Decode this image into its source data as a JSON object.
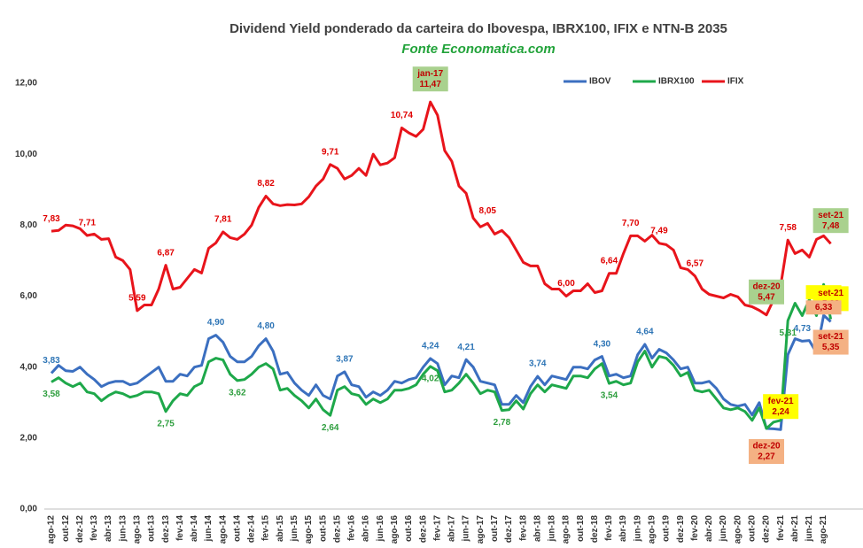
{
  "chart_data": {
    "type": "line",
    "title": "Dividend Yield ponderado da carteira do Ibovespa, IBRX100, IFIX e NTN-B 2035",
    "subtitle": "Fonte Economatica.com",
    "categories": [
      "ago-12",
      null,
      "out-12",
      null,
      "dez-12",
      null,
      "fev-13",
      null,
      "abr-13",
      null,
      "jun-13",
      null,
      "ago-13",
      null,
      "out-13",
      null,
      "dez-13",
      null,
      "fev-14",
      null,
      "abr-14",
      null,
      "jun-14",
      null,
      "ago-14",
      null,
      "out-14",
      null,
      "dez-14",
      null,
      "fev-15",
      null,
      "abr-15",
      null,
      "jun-15",
      null,
      "ago-15",
      null,
      "out-15",
      null,
      "dez-15",
      null,
      "fev-16",
      null,
      "abr-16",
      null,
      "jun-16",
      null,
      "ago-16",
      null,
      "out-16",
      null,
      "dez-16",
      null,
      "fev-17",
      null,
      "abr-17",
      null,
      "jun-17",
      null,
      "ago-17",
      null,
      "out-17",
      null,
      "dez-17",
      null,
      "fev-18",
      null,
      "abr-18",
      null,
      "jun-18",
      null,
      "ago-18",
      null,
      "out-18",
      null,
      "dez-18",
      null,
      "fev-19",
      null,
      "abr-19",
      null,
      "jun-19",
      null,
      "ago-19",
      null,
      "out-19",
      null,
      "dez-19",
      null,
      "fev-20",
      null,
      "abr-20",
      null,
      "jun-20",
      null,
      "ago-20",
      null,
      "out-20",
      null,
      "dez-20",
      null,
      "fev-21",
      null,
      "abr-21",
      null,
      "jun-21",
      null,
      "ago-21",
      null
    ],
    "ylim": [
      0,
      12
    ],
    "yticks": [
      {
        "value": 0,
        "label": "0,00"
      },
      {
        "value": 2,
        "label": "2,00"
      },
      {
        "value": 4,
        "label": "4,00"
      },
      {
        "value": 6,
        "label": "6,00"
      },
      {
        "value": 8,
        "label": "8,00"
      },
      {
        "value": 10,
        "label": "10,00"
      },
      {
        "value": 12,
        "label": "12,00"
      }
    ],
    "grid": false,
    "legend": "top-right",
    "series": [
      {
        "name": "IBOV",
        "color": "#3b6fc0",
        "label_color": "#2e75b6",
        "label_side": "above",
        "box_color": "#ffff00",
        "boxed": [
          102,
          108,
          109
        ],
        "values": [
          3.83,
          4.05,
          3.9,
          3.88,
          4.0,
          3.8,
          3.65,
          3.45,
          3.55,
          3.6,
          3.6,
          3.5,
          3.55,
          3.7,
          3.85,
          4.0,
          3.6,
          3.6,
          3.8,
          3.75,
          4.0,
          4.05,
          4.8,
          4.9,
          4.7,
          4.3,
          4.15,
          4.15,
          4.3,
          4.6,
          4.8,
          4.45,
          3.8,
          3.85,
          3.55,
          3.35,
          3.2,
          3.5,
          3.2,
          3.1,
          3.75,
          3.87,
          3.5,
          3.45,
          3.15,
          3.3,
          3.2,
          3.35,
          3.6,
          3.55,
          3.65,
          3.7,
          4.0,
          4.24,
          4.1,
          3.5,
          3.75,
          3.7,
          4.21,
          4.0,
          3.6,
          3.55,
          3.5,
          2.95,
          2.95,
          3.2,
          3.0,
          3.45,
          3.74,
          3.5,
          3.75,
          3.7,
          3.65,
          4.0,
          4.0,
          3.95,
          4.2,
          4.3,
          3.75,
          3.8,
          3.7,
          3.75,
          4.35,
          4.64,
          4.25,
          4.5,
          4.4,
          4.2,
          3.95,
          4.0,
          3.55,
          3.55,
          3.6,
          3.4,
          3.1,
          2.95,
          2.9,
          2.95,
          2.65,
          3.0,
          2.27,
          2.26,
          2.24,
          4.35,
          4.8,
          4.73,
          4.75,
          4.4,
          5.46,
          5.28
        ],
        "value_labels": [
          "3,83",
          null,
          null,
          null,
          null,
          null,
          null,
          null,
          null,
          null,
          null,
          null,
          null,
          null,
          null,
          null,
          null,
          null,
          null,
          null,
          null,
          null,
          null,
          "4,90",
          null,
          null,
          null,
          null,
          null,
          null,
          "4,80",
          null,
          null,
          null,
          null,
          null,
          null,
          null,
          null,
          null,
          null,
          "3,87",
          null,
          null,
          null,
          null,
          null,
          null,
          null,
          null,
          null,
          null,
          null,
          "4,24",
          null,
          null,
          null,
          null,
          "4,21",
          null,
          null,
          null,
          null,
          null,
          null,
          null,
          null,
          null,
          "3,74",
          null,
          null,
          null,
          null,
          null,
          null,
          null,
          null,
          "4,30",
          null,
          null,
          null,
          null,
          null,
          "4,64",
          null,
          null,
          null,
          null,
          null,
          null,
          null,
          null,
          null,
          null,
          null,
          null,
          null,
          null,
          null,
          null,
          null,
          null,
          "2,24",
          null,
          null,
          "4,73",
          null,
          null,
          "5,46",
          "5,28"
        ],
        "value_label_dates": [
          null,
          null,
          null,
          null,
          null,
          null,
          null,
          null,
          null,
          null,
          null,
          null,
          null,
          null,
          null,
          null,
          null,
          null,
          null,
          null,
          null,
          null,
          null,
          null,
          null,
          null,
          null,
          null,
          null,
          null,
          null,
          null,
          null,
          null,
          null,
          null,
          null,
          null,
          null,
          null,
          null,
          null,
          null,
          null,
          null,
          null,
          null,
          null,
          null,
          null,
          null,
          null,
          null,
          null,
          null,
          null,
          null,
          null,
          null,
          null,
          null,
          null,
          null,
          null,
          null,
          null,
          null,
          null,
          null,
          null,
          null,
          null,
          null,
          null,
          null,
          null,
          null,
          null,
          null,
          null,
          null,
          null,
          null,
          null,
          null,
          null,
          null,
          null,
          null,
          null,
          null,
          null,
          null,
          null,
          null,
          null,
          null,
          null,
          null,
          null,
          null,
          null,
          "fev-21",
          null,
          null,
          null,
          null,
          null,
          null,
          "set-21"
        ]
      },
      {
        "name": "IBRX100",
        "color": "#1ea84a",
        "label_color": "#2e9e3e",
        "label_side": "below",
        "box_color": "#f4b183",
        "boxed": [
          100,
          108,
          109
        ],
        "values": [
          3.58,
          3.7,
          3.55,
          3.45,
          3.55,
          3.3,
          3.25,
          3.05,
          3.2,
          3.3,
          3.25,
          3.15,
          3.2,
          3.3,
          3.3,
          3.25,
          2.75,
          3.05,
          3.25,
          3.2,
          3.45,
          3.55,
          4.15,
          4.25,
          4.2,
          3.8,
          3.62,
          3.65,
          3.8,
          4.0,
          4.1,
          3.95,
          3.35,
          3.4,
          3.2,
          3.05,
          2.85,
          3.1,
          2.8,
          2.64,
          3.35,
          3.45,
          3.25,
          3.2,
          2.95,
          3.1,
          3.0,
          3.1,
          3.35,
          3.35,
          3.4,
          3.5,
          3.8,
          4.02,
          3.9,
          3.3,
          3.35,
          3.55,
          3.8,
          3.55,
          3.25,
          3.35,
          3.3,
          2.78,
          2.8,
          3.05,
          2.82,
          3.25,
          3.5,
          3.3,
          3.5,
          3.45,
          3.4,
          3.75,
          3.75,
          3.7,
          3.95,
          4.1,
          3.54,
          3.6,
          3.5,
          3.55,
          4.15,
          4.45,
          4.0,
          4.3,
          4.25,
          4.05,
          3.75,
          3.85,
          3.35,
          3.3,
          3.35,
          3.1,
          2.85,
          2.8,
          2.85,
          2.75,
          2.5,
          2.85,
          2.27,
          2.45,
          2.5,
          5.31,
          5.8,
          5.45,
          5.9,
          5.45,
          6.33,
          5.35
        ],
        "value_labels": [
          "3,58",
          null,
          null,
          null,
          null,
          null,
          null,
          null,
          null,
          null,
          null,
          null,
          null,
          null,
          null,
          null,
          "2,75",
          null,
          null,
          null,
          null,
          null,
          null,
          null,
          null,
          null,
          "3,62",
          null,
          null,
          null,
          null,
          null,
          null,
          null,
          null,
          null,
          null,
          null,
          null,
          "2,64",
          null,
          null,
          null,
          null,
          null,
          null,
          null,
          null,
          null,
          null,
          null,
          null,
          null,
          "4,02",
          null,
          null,
          null,
          null,
          null,
          null,
          null,
          null,
          null,
          "2,78",
          null,
          null,
          null,
          null,
          null,
          null,
          null,
          null,
          null,
          null,
          null,
          null,
          null,
          null,
          "3,54",
          null,
          null,
          null,
          null,
          null,
          null,
          null,
          null,
          null,
          null,
          null,
          null,
          null,
          null,
          null,
          null,
          null,
          null,
          null,
          null,
          null,
          "2,27",
          null,
          null,
          "5,31",
          null,
          null,
          null,
          null,
          "6,33",
          "5,35"
        ],
        "value_label_dates": [
          null,
          null,
          null,
          null,
          null,
          null,
          null,
          null,
          null,
          null,
          null,
          null,
          null,
          null,
          null,
          null,
          null,
          null,
          null,
          null,
          null,
          null,
          null,
          null,
          null,
          null,
          null,
          null,
          null,
          null,
          null,
          null,
          null,
          null,
          null,
          null,
          null,
          null,
          null,
          null,
          null,
          null,
          null,
          null,
          null,
          null,
          null,
          null,
          null,
          null,
          null,
          null,
          null,
          null,
          null,
          null,
          null,
          null,
          null,
          null,
          null,
          null,
          null,
          null,
          null,
          null,
          null,
          null,
          null,
          null,
          null,
          null,
          null,
          null,
          null,
          null,
          null,
          null,
          null,
          null,
          null,
          null,
          null,
          null,
          null,
          null,
          null,
          null,
          null,
          null,
          null,
          null,
          null,
          null,
          null,
          null,
          null,
          null,
          null,
          null,
          "dez-20",
          null,
          null,
          null,
          null,
          null,
          null,
          null,
          null,
          "set-21"
        ]
      },
      {
        "name": "IFIX",
        "color": "#e8141b",
        "label_color": "#e00000",
        "label_side": "above",
        "box_color": "#a9d18e",
        "boxed": [
          53,
          100,
          109
        ],
        "values": [
          7.83,
          7.85,
          8.0,
          7.98,
          7.9,
          7.71,
          7.75,
          7.6,
          7.62,
          7.1,
          7.0,
          6.75,
          5.59,
          5.75,
          5.75,
          6.2,
          6.87,
          6.2,
          6.25,
          6.5,
          6.75,
          6.65,
          7.35,
          7.5,
          7.81,
          7.65,
          7.6,
          7.75,
          8.0,
          8.5,
          8.82,
          8.6,
          8.55,
          8.58,
          8.57,
          8.6,
          8.8,
          9.1,
          9.3,
          9.71,
          9.6,
          9.3,
          9.4,
          9.6,
          9.4,
          10.0,
          9.7,
          9.75,
          9.9,
          10.74,
          10.6,
          10.5,
          10.7,
          11.47,
          11.1,
          10.1,
          9.8,
          9.1,
          8.9,
          8.2,
          7.95,
          8.05,
          7.75,
          7.85,
          7.65,
          7.3,
          6.95,
          6.85,
          6.85,
          6.35,
          6.2,
          6.2,
          6.0,
          6.15,
          6.15,
          6.35,
          6.1,
          6.15,
          6.64,
          6.64,
          7.2,
          7.7,
          7.7,
          7.55,
          7.72,
          7.49,
          7.45,
          7.3,
          6.8,
          6.75,
          6.57,
          6.2,
          6.05,
          6.0,
          5.95,
          6.05,
          5.98,
          5.75,
          5.7,
          5.6,
          5.47,
          5.9,
          6.3,
          7.58,
          7.2,
          7.3,
          7.1,
          7.6,
          7.7,
          7.48
        ],
        "value_labels": [
          "7,83",
          null,
          null,
          null,
          null,
          "7,71",
          null,
          null,
          null,
          null,
          null,
          null,
          "5,59",
          null,
          null,
          null,
          "6,87",
          null,
          null,
          null,
          null,
          null,
          null,
          null,
          "7,81",
          null,
          null,
          null,
          null,
          null,
          "8,82",
          null,
          null,
          null,
          null,
          null,
          null,
          null,
          null,
          "9,71",
          null,
          null,
          null,
          null,
          null,
          null,
          null,
          null,
          null,
          "10,74",
          null,
          null,
          null,
          "11,47",
          null,
          null,
          null,
          null,
          null,
          null,
          null,
          "8,05",
          null,
          null,
          null,
          null,
          null,
          null,
          null,
          null,
          null,
          null,
          "6,00",
          null,
          null,
          null,
          null,
          null,
          "6,64",
          null,
          null,
          "7,70",
          null,
          null,
          null,
          "7,49",
          null,
          null,
          null,
          null,
          "6,57",
          null,
          null,
          null,
          null,
          null,
          null,
          null,
          null,
          null,
          "5,47",
          null,
          null,
          "7,58",
          null,
          null,
          null,
          null,
          null,
          "7,48"
        ],
        "value_label_dates": [
          null,
          null,
          null,
          null,
          null,
          null,
          null,
          null,
          null,
          null,
          null,
          null,
          null,
          null,
          null,
          null,
          null,
          null,
          null,
          null,
          null,
          null,
          null,
          null,
          null,
          null,
          null,
          null,
          null,
          null,
          null,
          null,
          null,
          null,
          null,
          null,
          null,
          null,
          null,
          null,
          null,
          null,
          null,
          null,
          null,
          null,
          null,
          null,
          null,
          null,
          null,
          null,
          null,
          "jan-17",
          null,
          null,
          null,
          null,
          null,
          null,
          null,
          null,
          null,
          null,
          null,
          null,
          null,
          null,
          null,
          null,
          null,
          null,
          null,
          null,
          null,
          null,
          null,
          null,
          null,
          null,
          null,
          null,
          null,
          null,
          null,
          null,
          null,
          null,
          null,
          null,
          null,
          null,
          null,
          null,
          null,
          null,
          null,
          null,
          null,
          null,
          "dez-20",
          null,
          null,
          null,
          null,
          null,
          null,
          null,
          null,
          "set-21"
        ]
      }
    ]
  }
}
